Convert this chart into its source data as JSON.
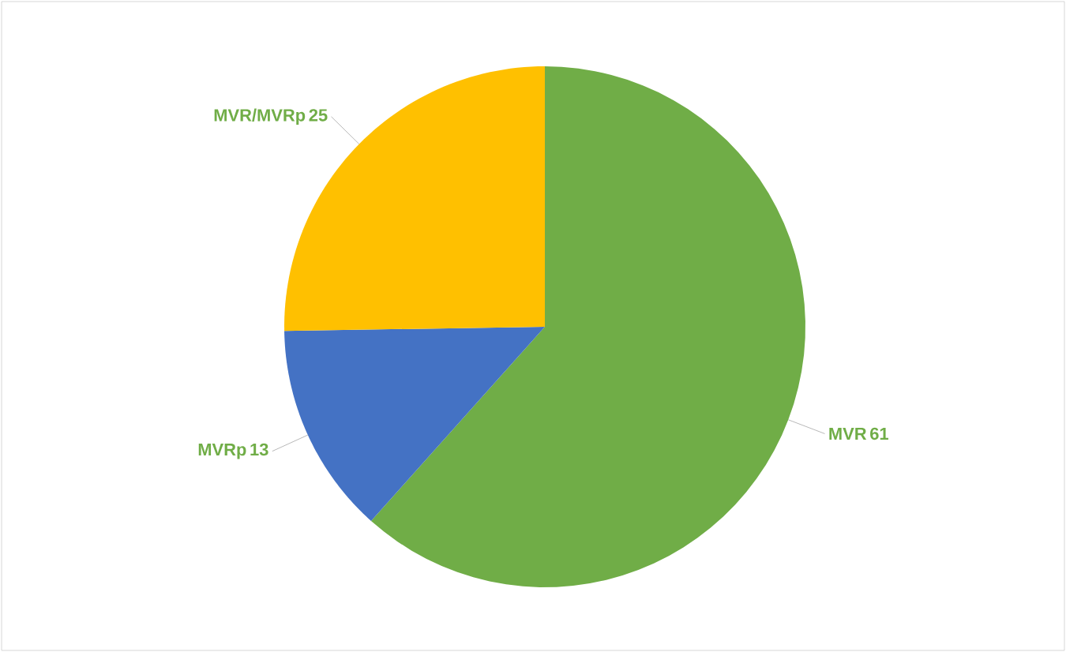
{
  "chart_data": {
    "type": "pie",
    "categories": [
      "MVR",
      "MVRp",
      "MVR/MVRp"
    ],
    "values": [
      61,
      13,
      25
    ],
    "colors": [
      "#70ad47",
      "#4472c4",
      "#ffc000"
    ],
    "value_labels": [
      "61",
      "13",
      "25"
    ]
  }
}
